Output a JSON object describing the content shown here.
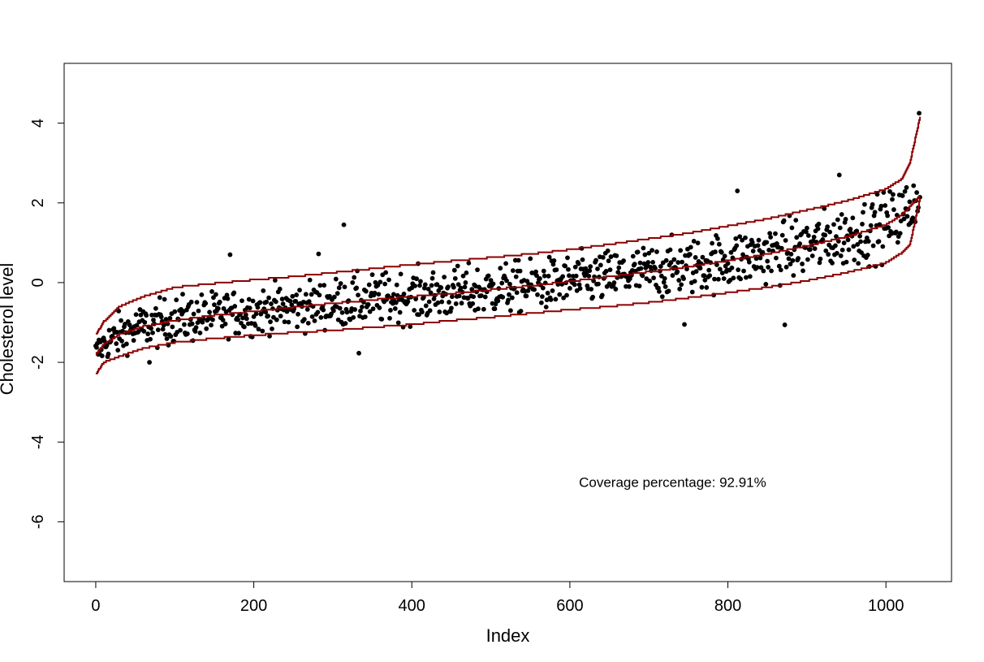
{
  "chart_data": {
    "type": "scatter",
    "title": "",
    "xlabel": "Index",
    "ylabel": "Cholesterol level",
    "xlim": [
      -40,
      1083
    ],
    "ylim": [
      -7.5,
      5.5
    ],
    "x_ticks": [
      0,
      200,
      400,
      600,
      800,
      1000
    ],
    "y_ticks": [
      -6,
      -4,
      -2,
      0,
      2,
      4
    ],
    "x_tick_labels": [
      "0",
      "200",
      "400",
      "600",
      "800",
      "1000"
    ],
    "y_tick_labels": [
      "-6",
      "-4",
      "-2",
      "0",
      "2",
      "4"
    ],
    "grid": false,
    "legend": "none",
    "n_points": 1044,
    "annotation": {
      "text": "Coverage percentage: 92.91%",
      "x": 730,
      "y": -5.0
    },
    "colors": {
      "points": "#000000",
      "bands": "#8b0000",
      "frame": "#000000"
    },
    "series": [
      {
        "role": "center-curve",
        "x": [
          0,
          10,
          30,
          60,
          100,
          150,
          200,
          250,
          300,
          350,
          400,
          450,
          500,
          550,
          600,
          650,
          700,
          750,
          800,
          850,
          900,
          950,
          1000,
          1020,
          1030,
          1044
        ],
        "y": [
          -1.8,
          -1.55,
          -1.3,
          -1.1,
          -0.95,
          -0.82,
          -0.72,
          -0.62,
          -0.52,
          -0.43,
          -0.35,
          -0.27,
          -0.18,
          -0.08,
          0.03,
          0.15,
          0.27,
          0.4,
          0.55,
          0.72,
          0.92,
          1.15,
          1.45,
          1.7,
          1.9,
          2.2
        ]
      },
      {
        "role": "upper-band",
        "x": [
          0,
          10,
          30,
          60,
          100,
          150,
          200,
          250,
          300,
          350,
          400,
          450,
          500,
          550,
          600,
          650,
          700,
          750,
          800,
          850,
          900,
          950,
          1000,
          1020,
          1030,
          1044
        ],
        "y": [
          -1.3,
          -0.98,
          -0.6,
          -0.35,
          -0.12,
          -0.02,
          0.07,
          0.15,
          0.25,
          0.35,
          0.45,
          0.54,
          0.63,
          0.72,
          0.83,
          0.96,
          1.1,
          1.24,
          1.42,
          1.6,
          1.82,
          2.05,
          2.35,
          2.6,
          3.0,
          4.25
        ]
      },
      {
        "role": "lower-band",
        "x": [
          0,
          10,
          30,
          60,
          100,
          150,
          200,
          250,
          300,
          350,
          400,
          450,
          500,
          550,
          600,
          650,
          700,
          750,
          800,
          850,
          900,
          950,
          1000,
          1020,
          1030,
          1044
        ],
        "y": [
          -2.3,
          -2.0,
          -1.85,
          -1.65,
          -1.5,
          -1.4,
          -1.32,
          -1.25,
          -1.2,
          -1.12,
          -1.05,
          -0.95,
          -0.87,
          -0.77,
          -0.68,
          -0.6,
          -0.5,
          -0.38,
          -0.25,
          -0.12,
          0.05,
          0.25,
          0.5,
          0.75,
          0.95,
          2.2
        ]
      }
    ],
    "outliers": [
      {
        "x": 170,
        "y": 0.7
      },
      {
        "x": 282,
        "y": 0.72
      },
      {
        "x": 314,
        "y": 1.45
      },
      {
        "x": 333,
        "y": -1.77
      },
      {
        "x": 68,
        "y": -2.0
      },
      {
        "x": 745,
        "y": -1.05
      },
      {
        "x": 812,
        "y": 2.3
      },
      {
        "x": 872,
        "y": -1.06
      },
      {
        "x": 941,
        "y": 2.7
      },
      {
        "x": 1042,
        "y": 4.25
      }
    ]
  }
}
